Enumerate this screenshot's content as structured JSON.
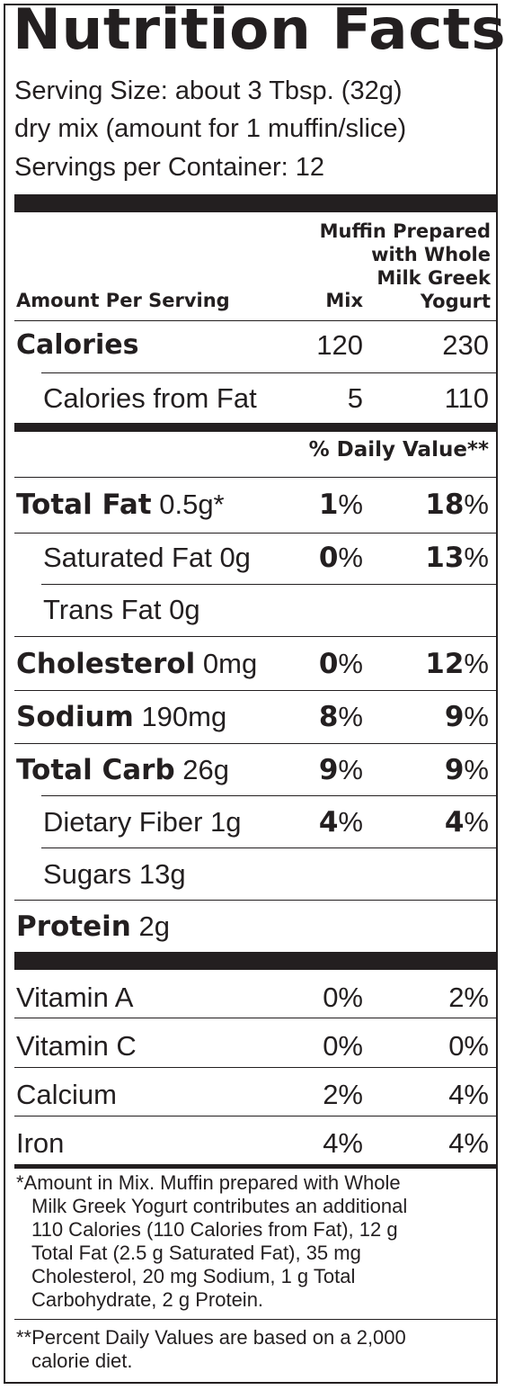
{
  "title": "Nutrition Facts",
  "serving": {
    "line1": "Serving Size: about 3 Tbsp. (32g)",
    "line2": "dry mix (amount for 1 muffin/slice)",
    "line3": "Servings per Container: 12"
  },
  "header": {
    "amount": "Amount Per Serving",
    "mix": "Mix",
    "prepared1": "Muffin Prepared",
    "prepared2": "with Whole",
    "prepared3": "Milk Greek",
    "prepared4": "Yogurt"
  },
  "calories": {
    "label": "Calories",
    "mix": "120",
    "prepared": "230"
  },
  "calories_fat": {
    "label": "Calories from Fat",
    "mix": "5",
    "prepared": "110"
  },
  "dv_header": "% Daily Value**",
  "nutrients": {
    "total_fat": {
      "name": "Total Fat",
      "amount": "0.5g*",
      "mix_num": "1",
      "prep_num": "18"
    },
    "sat_fat": {
      "name": "Saturated Fat 0g",
      "mix_num": "0",
      "prep_num": "13"
    },
    "trans_fat": {
      "name": "Trans Fat 0g"
    },
    "cholesterol": {
      "name": "Cholesterol",
      "amount": "0mg",
      "mix_num": "0",
      "prep_num": "12"
    },
    "sodium": {
      "name": "Sodium",
      "amount": "190mg",
      "mix_num": "8",
      "prep_num": "9"
    },
    "total_carb": {
      "name": "Total Carb",
      "amount": "26g",
      "mix_num": "9",
      "prep_num": "9"
    },
    "fiber": {
      "name": "Dietary Fiber 1g",
      "mix_num": "4",
      "prep_num": "4"
    },
    "sugars": {
      "name": "Sugars 13g"
    },
    "protein": {
      "name": "Protein",
      "amount": "2g"
    }
  },
  "pct": "%",
  "vitamins": {
    "vit_a": {
      "name": "Vitamin A",
      "mix": "0%",
      "prepared": "2%"
    },
    "vit_c": {
      "name": "Vitamin C",
      "mix": "0%",
      "prepared": "0%"
    },
    "calcium": {
      "name": "Calcium",
      "mix": "2%",
      "prepared": "4%"
    },
    "iron": {
      "name": "Iron",
      "mix": "4%",
      "prepared": "4%"
    }
  },
  "footnotes": {
    "f1_1": "*Amount in Mix. Muffin prepared with Whole",
    "f1_2": "Milk Greek Yogurt contributes an additional",
    "f1_3": "110 Calories (110 Calories from Fat), 12 g",
    "f1_4": "Total Fat (2.5 g Saturated Fat), 35 mg",
    "f1_5": "Cholesterol, 20 mg Sodium, 1 g Total",
    "f1_6": "Carbohydrate, 2 g Protein.",
    "f2_1": "**Percent Daily Values are based on a 2,000",
    "f2_2": "calorie diet."
  }
}
